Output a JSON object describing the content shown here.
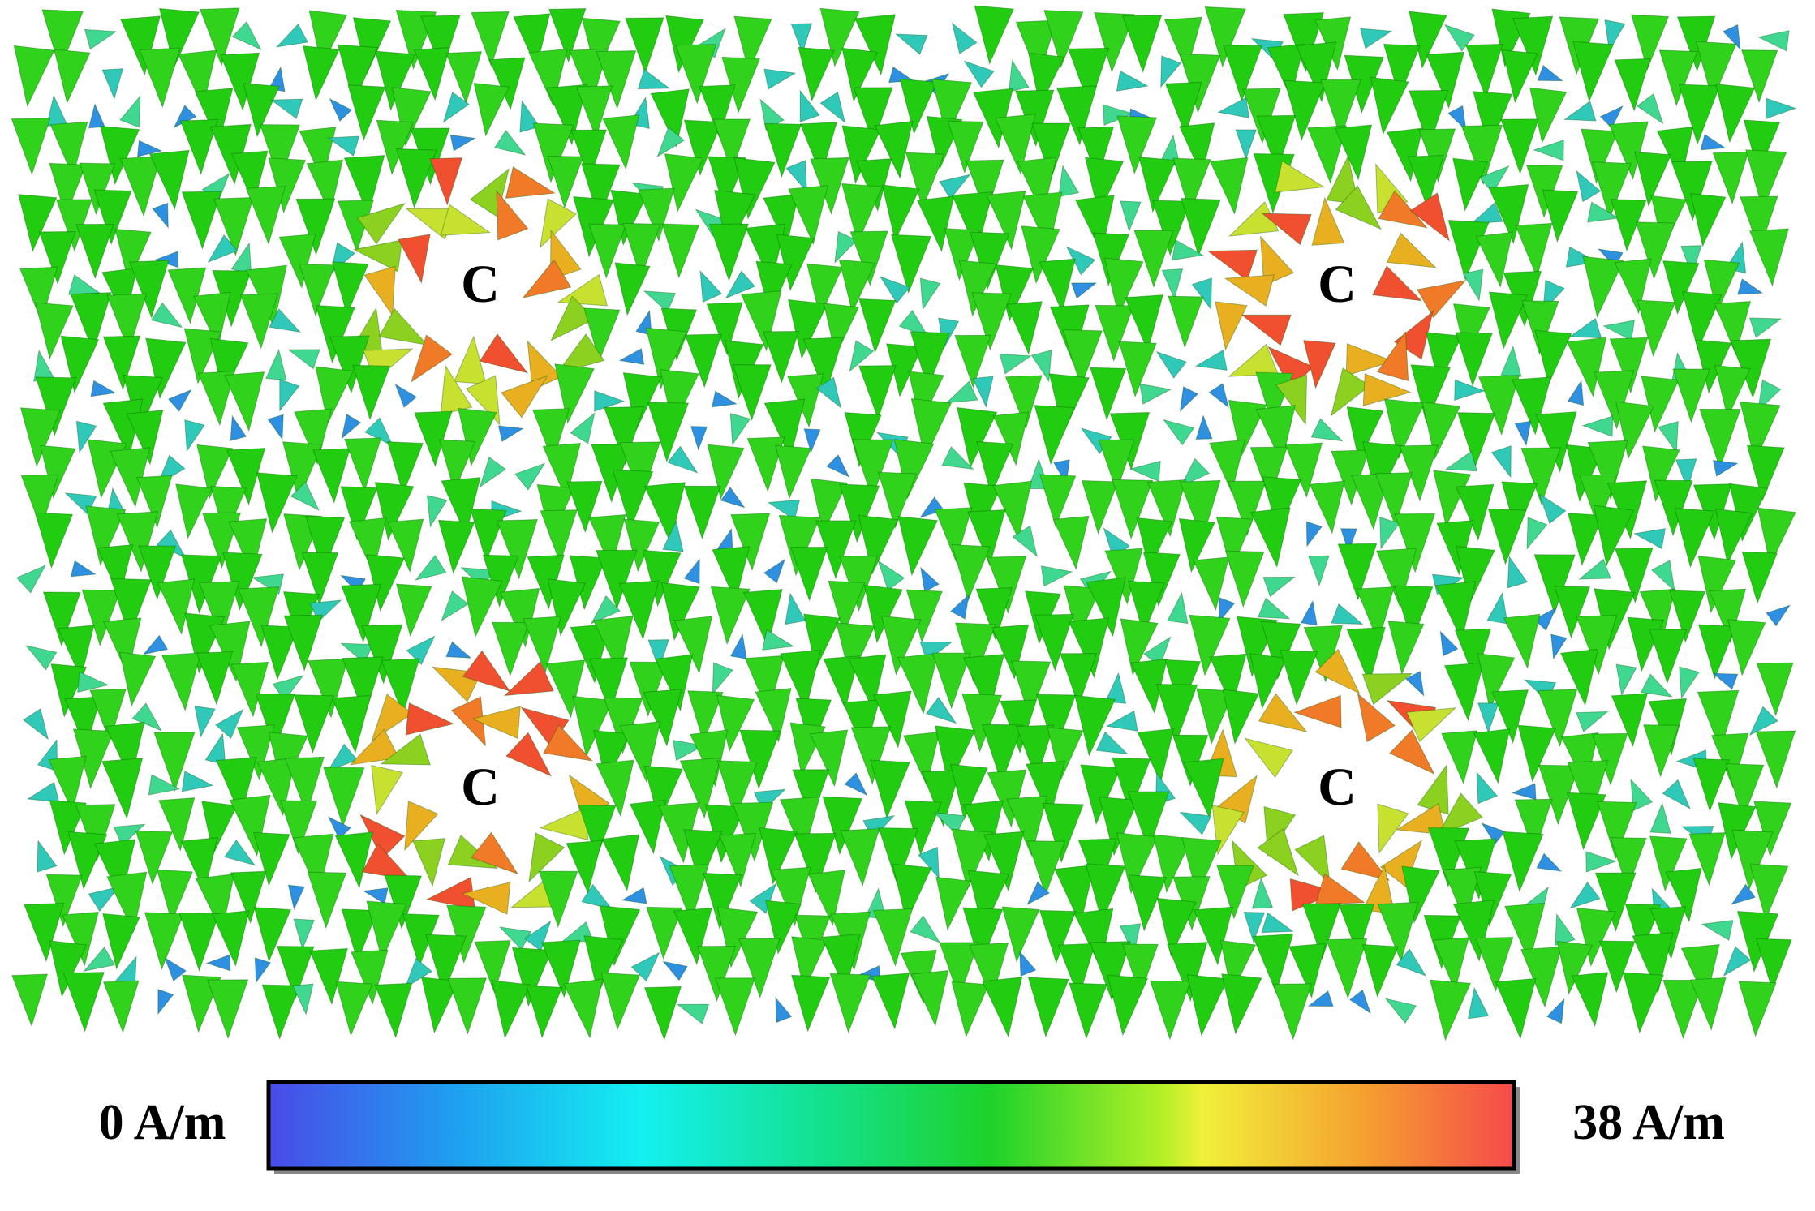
{
  "labels": [
    "C",
    "C",
    "C",
    "C"
  ],
  "colorbar": {
    "min_label": "0 A/m",
    "max_label": "38 A/m"
  }
}
